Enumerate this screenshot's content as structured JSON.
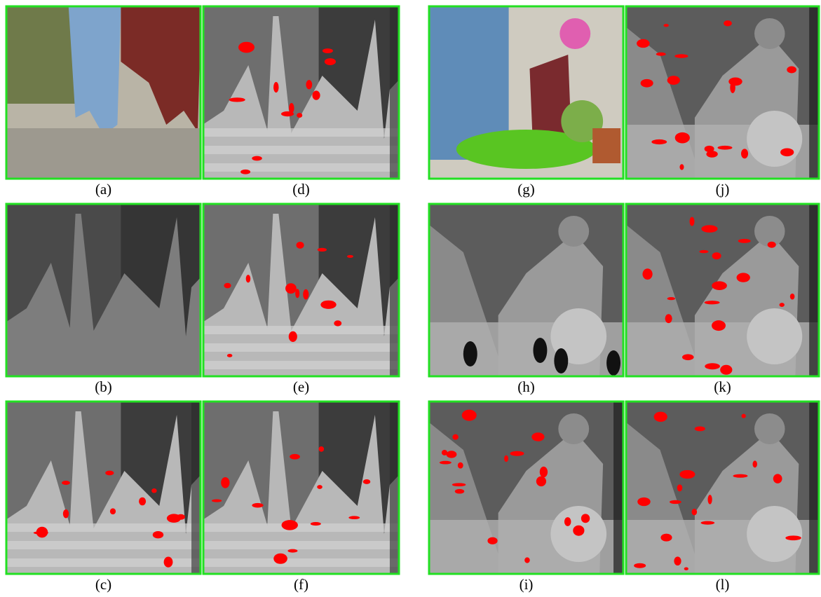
{
  "panels": [
    "(a)",
    "(d)",
    "(g)",
    "(j)",
    "(b)",
    "(e)",
    "(h)",
    "(k)",
    "(c)",
    "(f)",
    "(i)",
    "(l)"
  ]
}
